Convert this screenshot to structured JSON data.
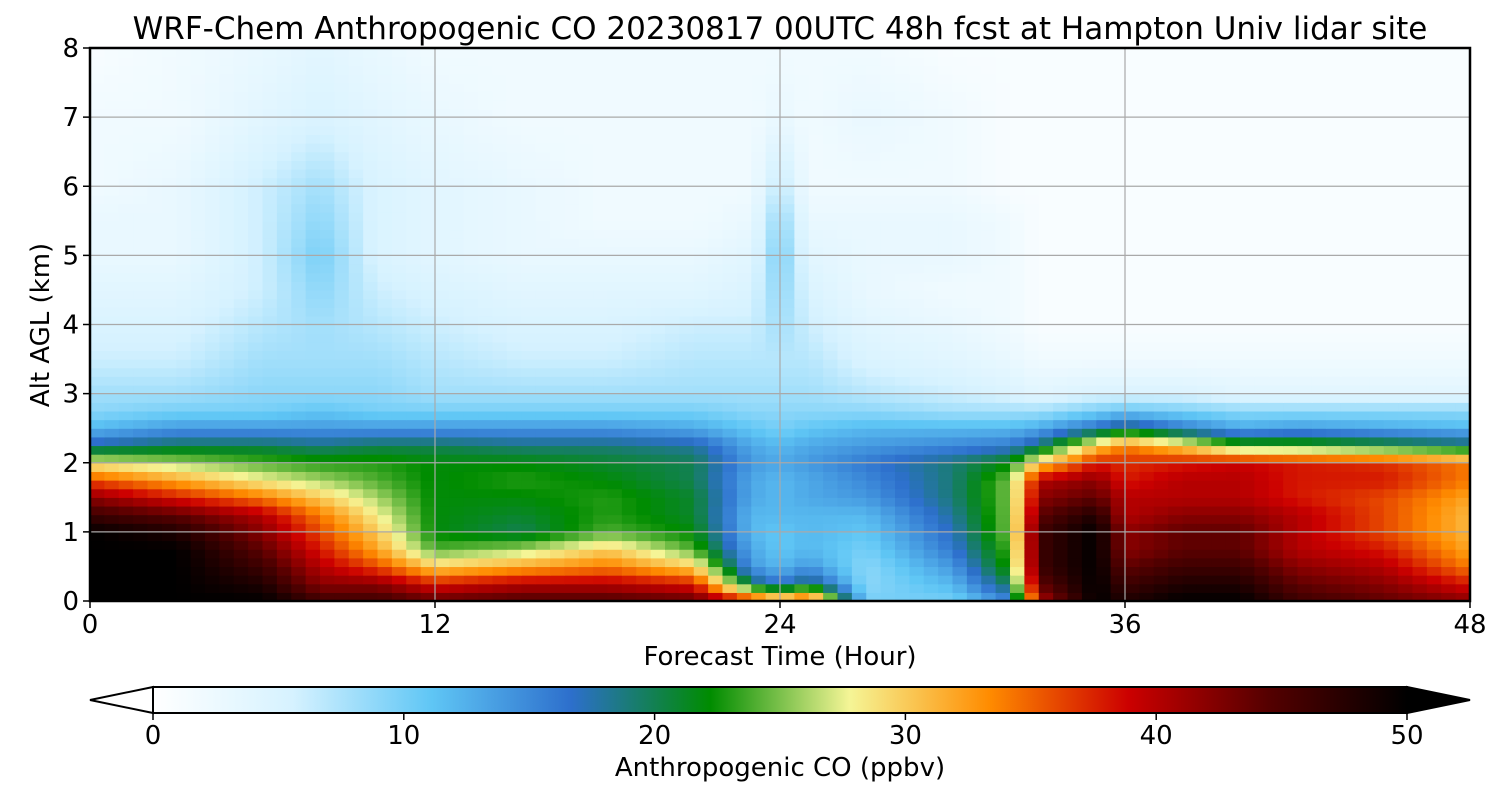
{
  "chart_data": {
    "type": "heatmap",
    "title": "WRF-Chem Anthropogenic CO  20230817 00UTC 48h fcst at Hampton Univ lidar site",
    "xlabel": "Forecast Time (Hour)",
    "ylabel": "Alt AGL (km)",
    "xlim": [
      0,
      48
    ],
    "ylim": [
      0,
      8
    ],
    "xticks": [
      0,
      12,
      24,
      36,
      48
    ],
    "yticks": [
      0,
      1,
      2,
      3,
      4,
      5,
      6,
      7,
      8
    ],
    "grid": true,
    "colorbar": {
      "label": "Anthropogenic CO  (ppbv)",
      "min": 0,
      "max": 50,
      "ticks": [
        0,
        10,
        20,
        30,
        40,
        50
      ],
      "extend": "both",
      "orientation": "horizontal",
      "colors": [
        "#ffffff",
        "#d6f2ff",
        "#5fc6f5",
        "#2d6fcc",
        "#008c00",
        "#f5f596",
        "#ff8c00",
        "#cc0000",
        "#550000",
        "#000000"
      ]
    },
    "times": [
      0,
      3,
      6,
      8,
      10,
      12,
      15,
      18,
      21,
      23,
      24,
      25,
      27,
      30,
      32,
      33,
      35,
      36,
      38,
      40,
      42,
      45,
      48
    ],
    "altitudes": [
      0.0,
      0.25,
      0.5,
      0.75,
      1.0,
      1.25,
      1.5,
      1.75,
      2.0,
      2.25,
      2.5,
      2.75,
      3.0,
      3.5,
      4.0,
      4.5,
      5.0,
      5.5,
      6.0,
      7.0,
      8.0
    ],
    "values": [
      [
        50,
        50,
        50,
        46,
        46,
        44,
        45,
        45,
        44,
        38,
        34,
        38,
        10,
        10,
        15,
        40,
        50,
        48,
        50,
        50,
        46,
        44,
        42
      ],
      [
        50,
        50,
        48,
        42,
        42,
        38,
        40,
        40,
        38,
        20,
        16,
        20,
        9,
        12,
        20,
        44,
        50,
        46,
        48,
        48,
        44,
        42,
        38
      ],
      [
        50,
        50,
        46,
        40,
        36,
        30,
        32,
        34,
        30,
        14,
        12,
        14,
        9,
        14,
        23,
        46,
        50,
        44,
        46,
        46,
        42,
        40,
        34
      ],
      [
        50,
        50,
        44,
        38,
        32,
        24,
        26,
        30,
        24,
        13,
        11,
        12,
        10,
        16,
        24,
        46,
        50,
        42,
        44,
        44,
        40,
        38,
        32
      ],
      [
        50,
        48,
        42,
        36,
        30,
        22,
        20,
        24,
        22,
        12,
        11,
        12,
        11,
        17,
        25,
        46,
        50,
        42,
        44,
        44,
        40,
        36,
        31
      ],
      [
        46,
        44,
        40,
        34,
        28,
        22,
        21,
        23,
        21,
        12,
        12,
        12,
        12,
        18,
        25,
        44,
        48,
        40,
        42,
        42,
        40,
        36,
        31
      ],
      [
        42,
        38,
        34,
        30,
        26,
        22,
        22,
        23,
        21,
        13,
        12,
        13,
        14,
        19,
        25,
        42,
        44,
        40,
        40,
        40,
        38,
        36,
        32
      ],
      [
        36,
        32,
        28,
        26,
        24,
        22,
        23,
        22,
        20,
        13,
        12,
        13,
        15,
        19,
        25,
        40,
        42,
        38,
        40,
        40,
        38,
        38,
        34
      ],
      [
        28,
        26,
        24,
        23,
        23,
        22,
        22,
        21,
        20,
        14,
        13,
        14,
        16,
        19,
        22,
        30,
        38,
        37,
        38,
        39,
        38,
        37,
        34
      ],
      [
        18,
        20,
        20,
        19,
        20,
        20,
        19,
        19,
        18,
        13,
        12,
        13,
        14,
        15,
        16,
        19,
        30,
        34,
        30,
        24,
        24,
        22,
        20
      ],
      [
        12,
        14,
        14,
        14,
        14,
        14,
        14,
        14,
        13,
        11,
        10,
        11,
        12,
        12,
        12,
        13,
        17,
        20,
        16,
        13,
        14,
        13,
        12
      ],
      [
        9,
        10,
        10,
        11,
        10,
        10,
        10,
        10,
        10,
        9,
        9,
        9,
        9,
        8,
        8,
        8,
        10,
        11,
        10,
        9,
        9,
        9,
        9
      ],
      [
        8,
        8,
        9,
        9,
        9,
        8,
        8,
        8,
        8,
        8,
        8,
        8,
        7,
        6,
        5,
        4,
        5,
        5,
        5,
        4,
        4,
        4,
        4
      ],
      [
        6,
        6,
        8,
        8,
        8,
        7,
        6,
        6,
        7,
        7,
        7,
        7,
        5,
        4,
        3,
        2,
        2,
        2,
        2,
        2,
        2,
        2,
        2
      ],
      [
        5,
        5,
        7,
        8,
        7,
        6,
        5,
        5,
        6,
        6,
        8,
        6,
        4,
        3,
        2,
        1,
        1,
        1,
        1,
        1,
        1,
        1,
        1
      ],
      [
        4,
        4,
        6,
        9,
        6,
        5,
        4,
        4,
        4,
        5,
        9,
        5,
        3,
        2,
        2,
        1,
        1,
        1,
        1,
        1,
        1,
        1,
        1
      ],
      [
        3,
        3,
        6,
        10,
        5,
        4,
        3,
        3,
        3,
        4,
        10,
        4,
        3,
        3,
        2,
        1,
        1,
        1,
        1,
        1,
        1,
        1,
        1
      ],
      [
        3,
        3,
        6,
        9,
        5,
        4,
        3,
        2,
        2,
        3,
        9,
        3,
        3,
        3,
        2,
        1,
        1,
        1,
        1,
        1,
        1,
        1,
        1
      ],
      [
        2,
        3,
        6,
        8,
        5,
        4,
        3,
        2,
        2,
        2,
        7,
        2,
        2,
        2,
        1,
        1,
        1,
        1,
        1,
        1,
        1,
        1,
        1
      ],
      [
        2,
        2,
        4,
        5,
        4,
        3,
        2,
        2,
        2,
        2,
        3,
        2,
        3,
        2,
        1,
        1,
        1,
        1,
        1,
        1,
        1,
        1,
        1
      ],
      [
        1,
        2,
        3,
        4,
        3,
        2,
        2,
        2,
        2,
        2,
        2,
        2,
        2,
        1,
        1,
        1,
        1,
        1,
        1,
        1,
        1,
        1,
        1
      ]
    ]
  }
}
